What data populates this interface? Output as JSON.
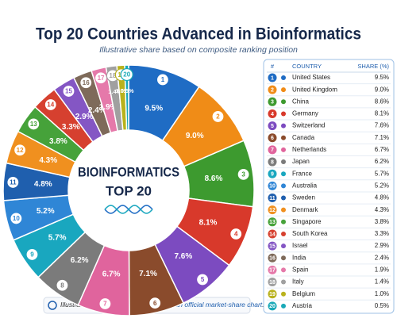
{
  "chart_data": {
    "type": "donut",
    "title": "Top 20 Countries Advanced in Bioinformatics",
    "subtitle": "Illustrative share based on composite ranking position",
    "center_title": "BIOINFORMATICS",
    "center_subtitle": "TOP 20",
    "ranks": [
      1,
      2,
      3,
      4,
      5,
      6,
      7,
      8,
      9,
      10,
      11,
      12,
      13,
      14,
      15,
      16,
      17,
      18,
      19,
      20
    ],
    "categories": [
      "United States",
      "United Kingdom",
      "China",
      "Germany",
      "Switzerland",
      "Canada",
      "Netherlands",
      "Japan",
      "France",
      "Australia",
      "Sweden",
      "Denmark",
      "Singapore",
      "South Korea",
      "Israel",
      "India",
      "Spain",
      "Italy",
      "Belgium",
      "Austria"
    ],
    "values": [
      9.5,
      9.0,
      8.6,
      8.1,
      7.6,
      7.1,
      6.7,
      6.2,
      5.7,
      5.2,
      4.8,
      4.3,
      3.8,
      3.3,
      2.9,
      2.4,
      1.9,
      1.4,
      1.0,
      0.5
    ],
    "value_labels": [
      "9.5%",
      "9.0%",
      "8.6%",
      "8.1%",
      "7.6%",
      "7.1%",
      "6.7%",
      "6.2%",
      "5.7%",
      "5.2%",
      "4.8%",
      "4.3%",
      "3.8%",
      "3.3%",
      "2.9%",
      "2.4%",
      "1.9%",
      "1.4%",
      "1.0%",
      "0.5%"
    ],
    "colors": [
      "#1f6cc4",
      "#f08c17",
      "#3d9a2f",
      "#d8392b",
      "#7c4bc0",
      "#8a4b2c",
      "#e0649d",
      "#7b7b7b",
      "#19a7bf",
      "#2f86d6",
      "#1f5fae",
      "#f0901f",
      "#46a23a",
      "#d6402f",
      "#8456c4",
      "#7e6a5a",
      "#e579aa",
      "#a0a0a0",
      "#b9b21c",
      "#1aa9b8"
    ]
  },
  "table": {
    "columns": [
      "#",
      "COUNTRY",
      "SHARE (%)"
    ]
  },
  "footnote": {
    "text": "Illustrative ranking visualization — ",
    "emphasis": "not an official market-share chart",
    "end": "."
  }
}
